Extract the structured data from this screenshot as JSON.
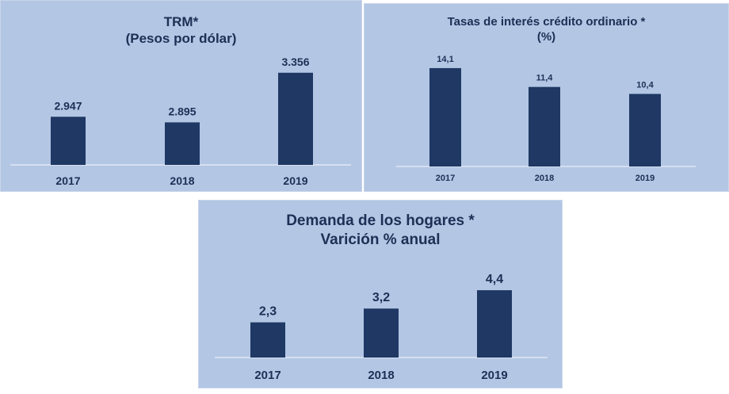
{
  "chart_data": [
    {
      "type": "bar",
      "title": "TRM*",
      "subtitle": "(Pesos por dólar)",
      "categories": [
        "2017",
        "2018",
        "2019"
      ],
      "values": [
        2947,
        2895,
        3356
      ],
      "value_labels": [
        "2.947",
        "2.895",
        "3.356"
      ],
      "ylim": [
        2500,
        3450
      ],
      "grid": false,
      "bar_color": "#1f3864"
    },
    {
      "type": "bar",
      "title": "Tasas de interés crédito ordinario *",
      "subtitle": "(%)",
      "categories": [
        "2017",
        "2018",
        "2019"
      ],
      "values": [
        14.1,
        11.4,
        10.4
      ],
      "value_labels": [
        "14,1",
        "11,4",
        "10,4"
      ],
      "ylim": [
        0,
        15
      ],
      "grid": false,
      "bar_color": "#1f3864"
    },
    {
      "type": "bar",
      "title": "Demanda de los hogares *",
      "subtitle": "Varición % anual",
      "categories": [
        "2017",
        "2018",
        "2019"
      ],
      "values": [
        2.3,
        3.2,
        4.4
      ],
      "value_labels": [
        "2,3",
        "3,2",
        "4,4"
      ],
      "ylim": [
        0,
        5.7
      ],
      "grid": false,
      "bar_color": "#1f3864"
    }
  ],
  "colors": {
    "panel_background": "#b3c6e4",
    "bar": "#1f3864",
    "text": "#1e2f55",
    "baseline": "#dfe7f3"
  }
}
